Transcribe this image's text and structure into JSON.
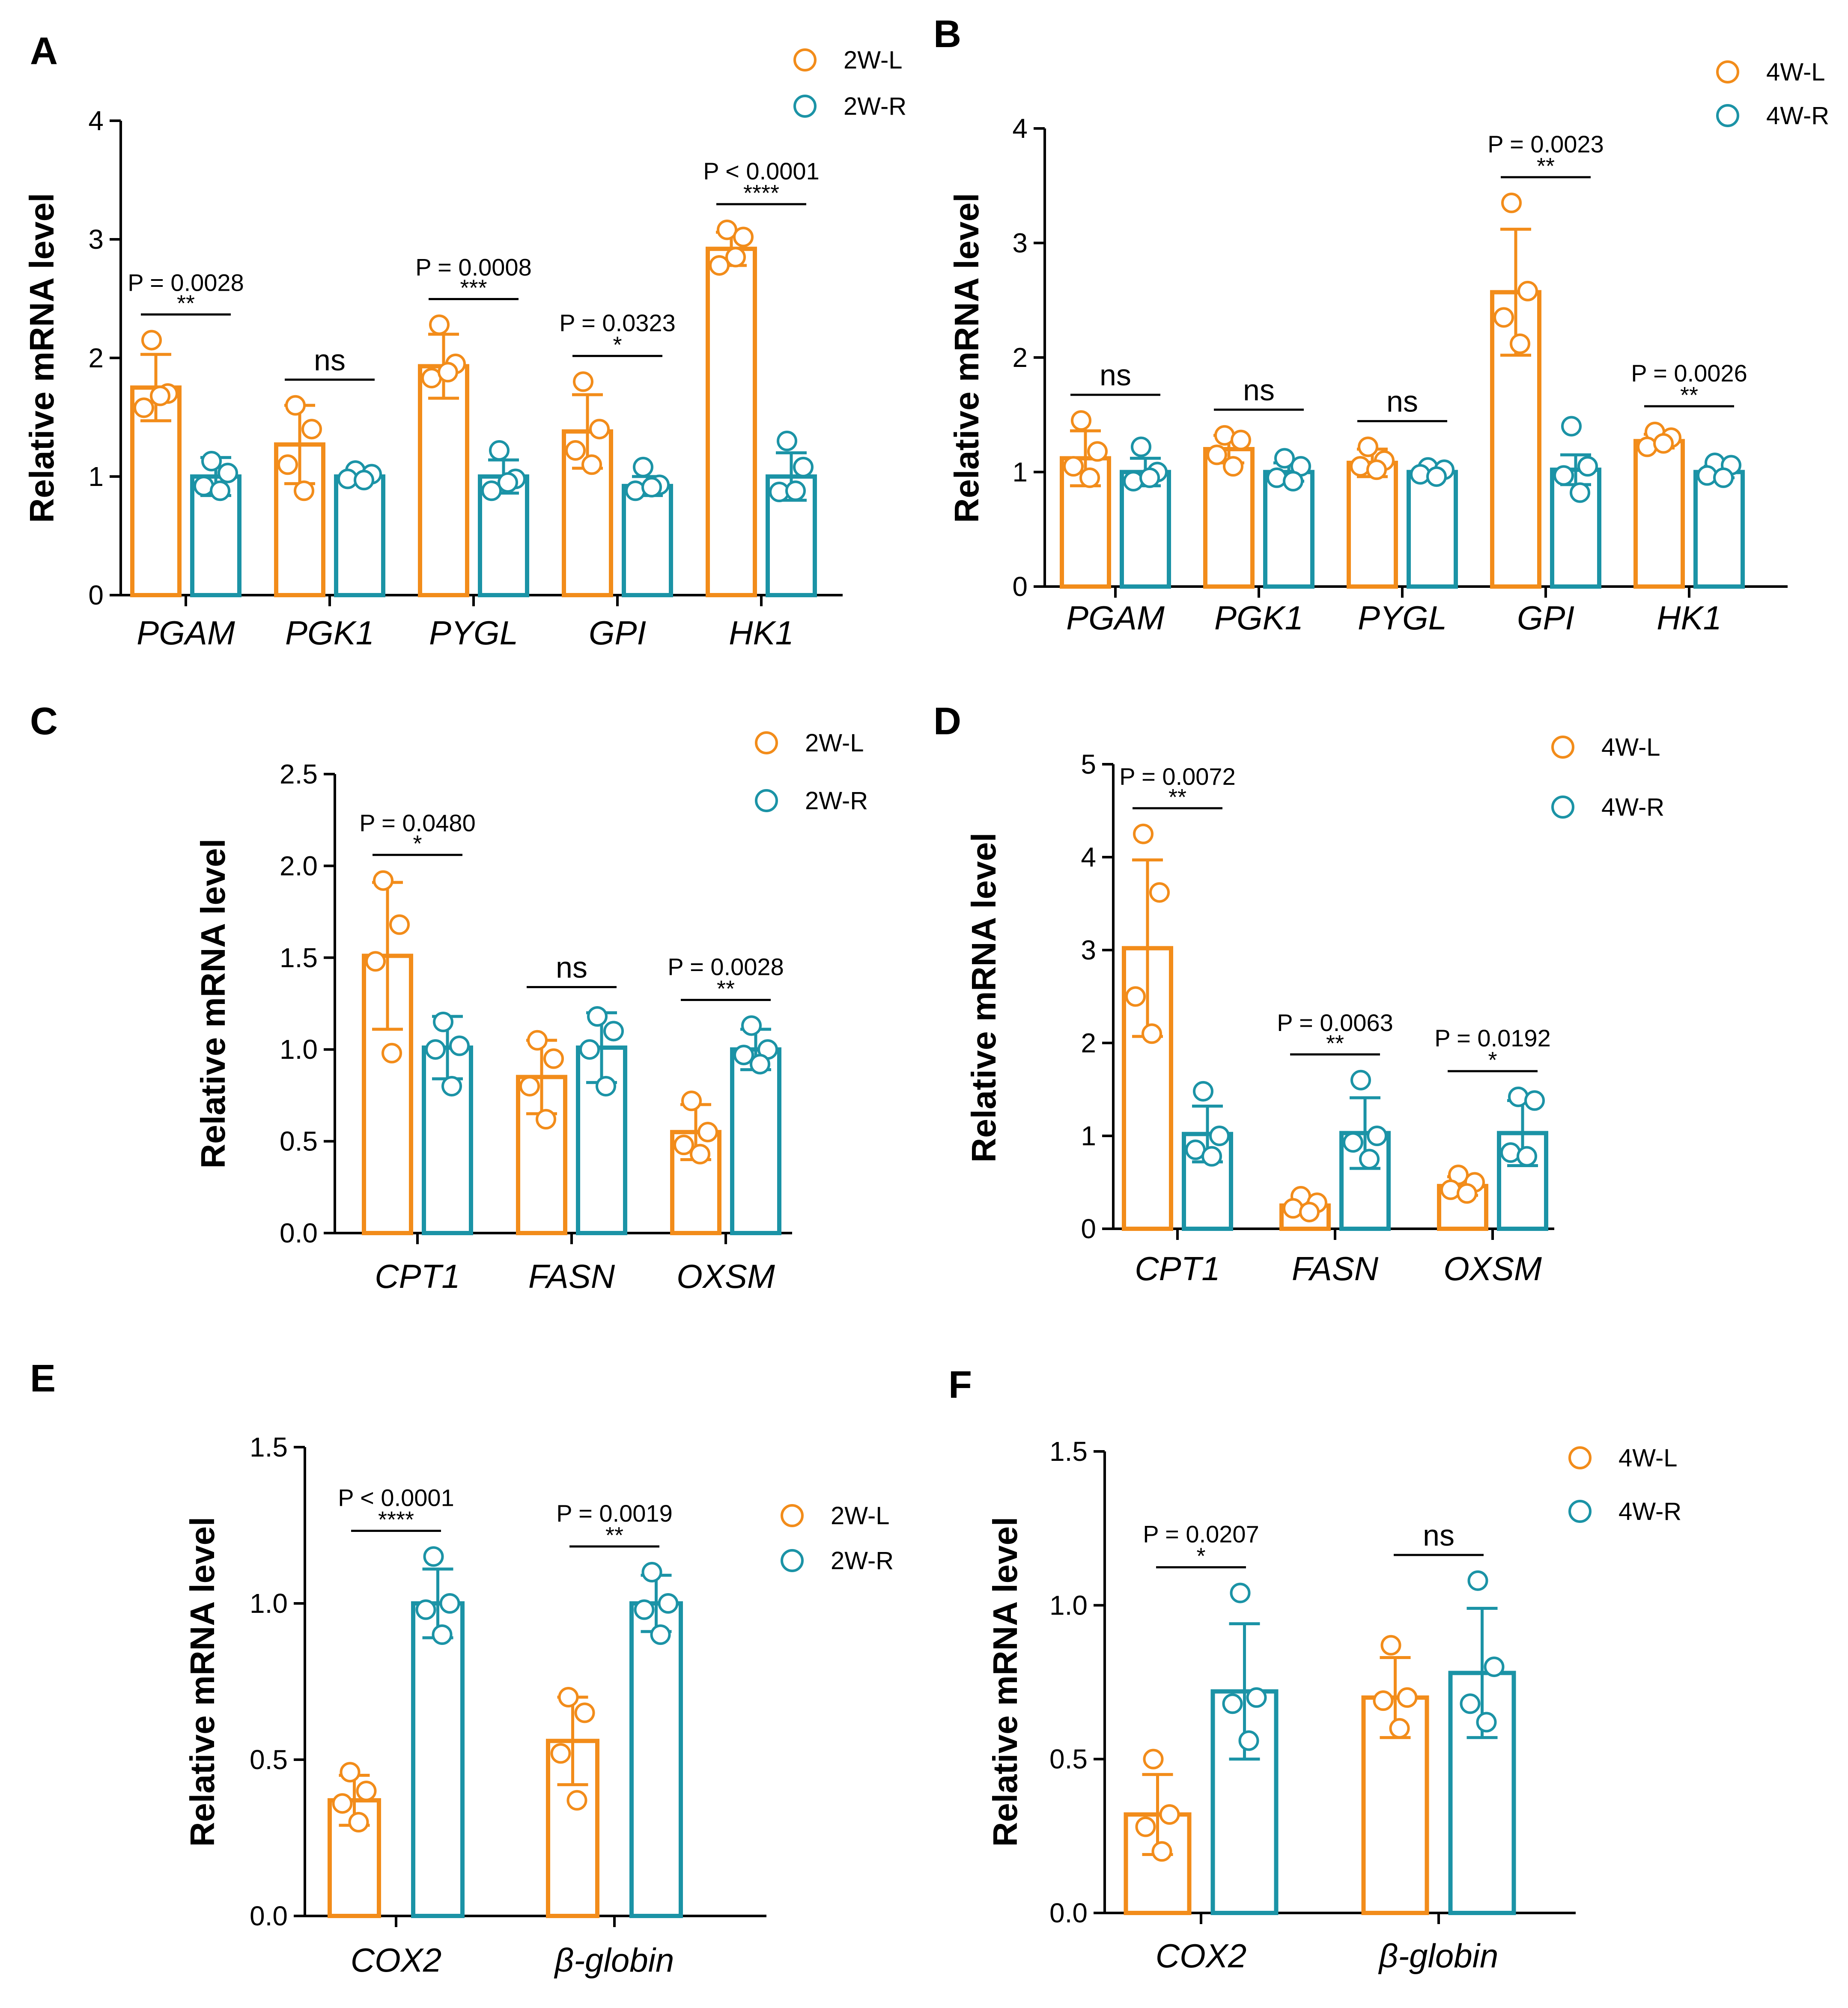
{
  "figure": {
    "colors": {
      "left": "#F28C1A",
      "right": "#1B93A6",
      "axis": "#000000"
    }
  },
  "chart_data": [
    {
      "panel": "A",
      "type": "bar",
      "ylabel": "Relative mRNA level",
      "ylim": [
        0,
        4
      ],
      "yticks": [
        "0",
        "1",
        "2",
        "3",
        "4"
      ],
      "categories": [
        "PGAM",
        "PGK1",
        "PYGL",
        "GPI",
        "HK1"
      ],
      "series": [
        {
          "name": "2W-L",
          "color": "left",
          "values": [
            1.75,
            1.27,
            1.93,
            1.38,
            2.92
          ],
          "sd": [
            0.28,
            0.33,
            0.27,
            0.31,
            0.14
          ],
          "points": [
            [
              2.15,
              1.7,
              1.58,
              1.68
            ],
            [
              1.6,
              1.4,
              1.1,
              0.88
            ],
            [
              2.28,
              1.95,
              1.83,
              1.88
            ],
            [
              1.8,
              1.4,
              1.22,
              1.1
            ],
            [
              3.08,
              3.02,
              2.78,
              2.85
            ]
          ]
        },
        {
          "name": "2W-R",
          "color": "right",
          "values": [
            1.0,
            1.0,
            1.0,
            0.92,
            1.0
          ],
          "sd": [
            0.16,
            0.05,
            0.14,
            0.08,
            0.2
          ],
          "points": [
            [
              1.13,
              1.03,
              0.92,
              0.88
            ],
            [
              1.05,
              1.02,
              0.98,
              0.97
            ],
            [
              1.22,
              0.98,
              0.88,
              0.95
            ],
            [
              1.08,
              0.93,
              0.88,
              0.91
            ],
            [
              1.3,
              1.08,
              0.87,
              0.88
            ]
          ]
        }
      ],
      "annotations": [
        {
          "category": "PGAM",
          "p": "P = 0.0028",
          "sig": "**"
        },
        {
          "category": "PGK1",
          "p": "",
          "sig": "ns"
        },
        {
          "category": "PYGL",
          "p": "P = 0.0008",
          "sig": "***"
        },
        {
          "category": "GPI",
          "p": "P = 0.0323",
          "sig": "*"
        },
        {
          "category": "HK1",
          "p": "P < 0.0001",
          "sig": "****"
        }
      ],
      "legend": [
        "2W-L",
        "2W-R"
      ]
    },
    {
      "panel": "B",
      "type": "bar",
      "ylabel": "Relative mRNA level",
      "ylim": [
        0,
        4
      ],
      "yticks": [
        "0",
        "1",
        "2",
        "3",
        "4"
      ],
      "categories": [
        "PGAM",
        "PGK1",
        "PYGL",
        "GPI",
        "HK1"
      ],
      "series": [
        {
          "name": "4W-L",
          "color": "left",
          "values": [
            1.12,
            1.2,
            1.08,
            2.57,
            1.27
          ],
          "sd": [
            0.24,
            0.12,
            0.12,
            0.55,
            0.06
          ],
          "points": [
            [
              1.45,
              1.18,
              1.05,
              0.95
            ],
            [
              1.32,
              1.28,
              1.15,
              1.05
            ],
            [
              1.22,
              1.1,
              1.05,
              1.02
            ],
            [
              3.35,
              2.58,
              2.35,
              2.12
            ],
            [
              1.35,
              1.3,
              1.22,
              1.25
            ]
          ]
        },
        {
          "name": "4W-R",
          "color": "right",
          "values": [
            1.0,
            1.0,
            1.0,
            1.02,
            1.0
          ],
          "sd": [
            0.12,
            0.08,
            0.04,
            0.13,
            0.05
          ],
          "points": [
            [
              1.22,
              1.0,
              0.92,
              0.95
            ],
            [
              1.12,
              1.05,
              0.95,
              0.92
            ],
            [
              1.04,
              1.02,
              0.98,
              0.96
            ],
            [
              1.4,
              1.05,
              0.97,
              0.82
            ],
            [
              1.08,
              1.06,
              0.97,
              0.95
            ]
          ]
        }
      ],
      "annotations": [
        {
          "category": "PGAM",
          "p": "",
          "sig": "ns"
        },
        {
          "category": "PGK1",
          "p": "",
          "sig": "ns"
        },
        {
          "category": "PYGL",
          "p": "",
          "sig": "ns"
        },
        {
          "category": "GPI",
          "p": "P = 0.0023",
          "sig": "**"
        },
        {
          "category": "HK1",
          "p": "P = 0.0026",
          "sig": "**"
        }
      ],
      "legend": [
        "4W-L",
        "4W-R"
      ]
    },
    {
      "panel": "C",
      "type": "bar",
      "ylabel": "Relative mRNA level",
      "ylim": [
        0,
        2.5
      ],
      "yticks": [
        "0.0",
        "0.5",
        "1.0",
        "1.5",
        "2.0",
        "2.5"
      ],
      "categories": [
        "CPT1",
        "FASN",
        "OXSM"
      ],
      "series": [
        {
          "name": "2W-L",
          "color": "left",
          "values": [
            1.51,
            0.85,
            0.55
          ],
          "sd": [
            0.4,
            0.2,
            0.15
          ],
          "points": [
            [
              1.92,
              1.68,
              1.48,
              0.98
            ],
            [
              1.05,
              0.95,
              0.8,
              0.62
            ],
            [
              0.72,
              0.55,
              0.48,
              0.43
            ]
          ]
        },
        {
          "name": "2W-R",
          "color": "right",
          "values": [
            1.01,
            1.01,
            1.0
          ],
          "sd": [
            0.17,
            0.19,
            0.11
          ],
          "points": [
            [
              1.15,
              1.02,
              1.0,
              0.8
            ],
            [
              1.18,
              1.1,
              1.0,
              0.8
            ],
            [
              1.13,
              1.0,
              0.97,
              0.92
            ]
          ]
        }
      ],
      "annotations": [
        {
          "category": "CPT1",
          "p": "P = 0.0480",
          "sig": "*"
        },
        {
          "category": "FASN",
          "p": "",
          "sig": "ns"
        },
        {
          "category": "OXSM",
          "p": "P = 0.0028",
          "sig": "**"
        }
      ],
      "legend": [
        "2W-L",
        "2W-R"
      ]
    },
    {
      "panel": "D",
      "type": "bar",
      "ylabel": "Relative mRNA level",
      "ylim": [
        0,
        5
      ],
      "yticks": [
        "0",
        "1",
        "2",
        "3",
        "4",
        "5"
      ],
      "categories": [
        "CPT1",
        "FASN",
        "OXSM"
      ],
      "series": [
        {
          "name": "4W-L",
          "color": "left",
          "values": [
            3.02,
            0.25,
            0.46
          ],
          "sd": [
            0.95,
            0.06,
            0.1
          ],
          "points": [
            [
              4.25,
              3.62,
              2.5,
              2.1
            ],
            [
              0.35,
              0.28,
              0.22,
              0.18
            ],
            [
              0.58,
              0.5,
              0.42,
              0.38
            ]
          ]
        },
        {
          "name": "4W-R",
          "color": "right",
          "values": [
            1.02,
            1.03,
            1.03
          ],
          "sd": [
            0.3,
            0.38,
            0.35
          ],
          "points": [
            [
              1.48,
              1.0,
              0.85,
              0.78
            ],
            [
              1.6,
              1.0,
              0.93,
              0.75
            ],
            [
              1.42,
              1.38,
              0.82,
              0.78
            ]
          ]
        }
      ],
      "annotations": [
        {
          "category": "CPT1",
          "p": "P = 0.0072",
          "sig": "**"
        },
        {
          "category": "FASN",
          "p": "P = 0.0063",
          "sig": "**"
        },
        {
          "category": "OXSM",
          "p": "P = 0.0192",
          "sig": "*"
        }
      ],
      "legend": [
        "4W-L",
        "4W-R"
      ]
    },
    {
      "panel": "E",
      "type": "bar",
      "ylabel": "Relative mRNA level",
      "ylim": [
        0,
        1.5
      ],
      "yticks": [
        "0.0",
        "0.5",
        "1.0",
        "1.5"
      ],
      "categories": [
        "COX2",
        "β-globin"
      ],
      "series": [
        {
          "name": "2W-L",
          "color": "left",
          "values": [
            0.37,
            0.56
          ],
          "sd": [
            0.08,
            0.14
          ],
          "points": [
            [
              0.46,
              0.4,
              0.36,
              0.3
            ],
            [
              0.7,
              0.65,
              0.52,
              0.37
            ]
          ]
        },
        {
          "name": "2W-R",
          "color": "right",
          "values": [
            1.0,
            1.0
          ],
          "sd": [
            0.11,
            0.09
          ],
          "points": [
            [
              1.15,
              1.0,
              0.98,
              0.9
            ],
            [
              1.1,
              1.0,
              0.98,
              0.9
            ]
          ]
        }
      ],
      "annotations": [
        {
          "category": "COX2",
          "p": "P < 0.0001",
          "sig": "****"
        },
        {
          "category": "β-globin",
          "p": "P = 0.0019",
          "sig": "**"
        }
      ],
      "legend": [
        "2W-L",
        "2W-R"
      ]
    },
    {
      "panel": "F",
      "type": "bar",
      "ylabel": "Relative mRNA level",
      "ylim": [
        0,
        1.5
      ],
      "yticks": [
        "0.0",
        "0.5",
        "1.0",
        "1.5"
      ],
      "categories": [
        "COX2",
        "β-globin"
      ],
      "series": [
        {
          "name": "4W-L",
          "color": "left",
          "values": [
            0.32,
            0.7
          ],
          "sd": [
            0.13,
            0.13
          ],
          "points": [
            [
              0.5,
              0.32,
              0.28,
              0.2
            ],
            [
              0.87,
              0.7,
              0.69,
              0.6
            ]
          ]
        },
        {
          "name": "4W-R",
          "color": "right",
          "values": [
            0.72,
            0.78
          ],
          "sd": [
            0.22,
            0.21
          ],
          "points": [
            [
              1.04,
              0.7,
              0.68,
              0.56
            ],
            [
              1.08,
              0.8,
              0.68,
              0.62
            ]
          ]
        }
      ],
      "annotations": [
        {
          "category": "COX2",
          "p": "P = 0.0207",
          "sig": "*"
        },
        {
          "category": "β-globin",
          "p": "",
          "sig": "ns"
        }
      ],
      "legend": [
        "4W-L",
        "4W-R"
      ]
    }
  ]
}
